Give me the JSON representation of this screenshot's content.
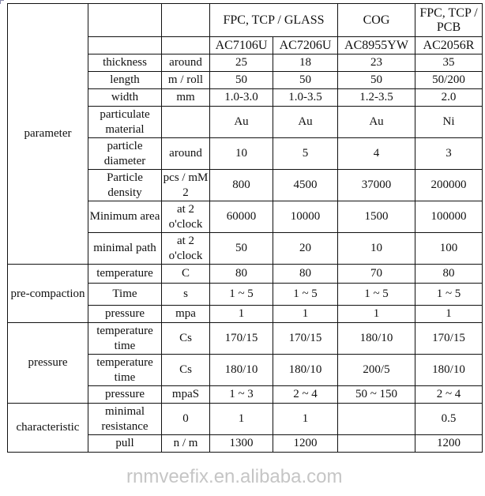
{
  "header": {
    "group_glass": "FPC, TCP / GLASS",
    "group_cog": "COG",
    "group_pcb": "FPC, TCP / PCB",
    "models": [
      "AC7106U",
      "AC7206U",
      "AC8955YW",
      "AC2056R"
    ]
  },
  "sections": [
    {
      "label": "parameter",
      "rows": [
        {
          "name": "thickness",
          "unit": "around",
          "values": [
            "25",
            "18",
            "23",
            "35"
          ]
        },
        {
          "name": "length",
          "unit": "m / roll",
          "values": [
            "50",
            "50",
            "50",
            "50/200"
          ]
        },
        {
          "name": "width",
          "unit": "mm",
          "values": [
            "1.0-3.0",
            "1.0-3.5",
            "1.2-3.5",
            "2.0"
          ]
        },
        {
          "name": "particulate material",
          "unit": "",
          "values": [
            "Au",
            "Au",
            "Au",
            "Ni"
          ]
        },
        {
          "name": "particle diameter",
          "unit": "around",
          "values": [
            "10",
            "5",
            "4",
            "3"
          ]
        },
        {
          "name": "Particle density",
          "unit": "pcs / mM 2",
          "values": [
            "800",
            "4500",
            "37000",
            "200000"
          ]
        },
        {
          "name": "Minimum area",
          "unit": "at 2 o'clock",
          "values": [
            "60000",
            "10000",
            "1500",
            "100000"
          ]
        },
        {
          "name": "minimal path",
          "unit": "at 2 o'clock",
          "values": [
            "50",
            "20",
            "10",
            "100"
          ]
        }
      ]
    },
    {
      "label": "pre-compaction",
      "rows": [
        {
          "name": "temperature",
          "unit": "C",
          "values": [
            "80",
            "80",
            "70",
            "80"
          ]
        },
        {
          "name": "Time",
          "unit": "s",
          "values": [
            "1 ~ 5",
            "1 ~ 5",
            "1 ~ 5",
            "1 ~ 5"
          ]
        },
        {
          "name": "pressure",
          "unit": "mpa",
          "values": [
            "1",
            "1",
            "1",
            "1"
          ]
        }
      ]
    },
    {
      "label": "pressure",
      "rows": [
        {
          "name": "temperature time",
          "unit": "Cs",
          "values": [
            "170/15",
            "170/15",
            "180/10",
            "170/15"
          ]
        },
        {
          "name": "temperature time",
          "unit": "Cs",
          "values": [
            "180/10",
            "180/10",
            "200/5",
            "180/10"
          ]
        },
        {
          "name": "pressure",
          "unit": "mpaS",
          "values": [
            "1 ~ 3",
            "2 ~ 4",
            "50 ~ 150",
            "2 ~ 4"
          ]
        }
      ]
    },
    {
      "label": "characteristic",
      "rows": [
        {
          "name": "minimal resistance",
          "unit": "0",
          "values": [
            "1",
            "1",
            "",
            "0.5"
          ]
        },
        {
          "name": "pull",
          "unit": "n / m",
          "values": [
            "1300",
            "1200",
            "",
            "1200"
          ]
        }
      ]
    }
  ],
  "watermark": "rnmveefix.en.alibaba.com"
}
